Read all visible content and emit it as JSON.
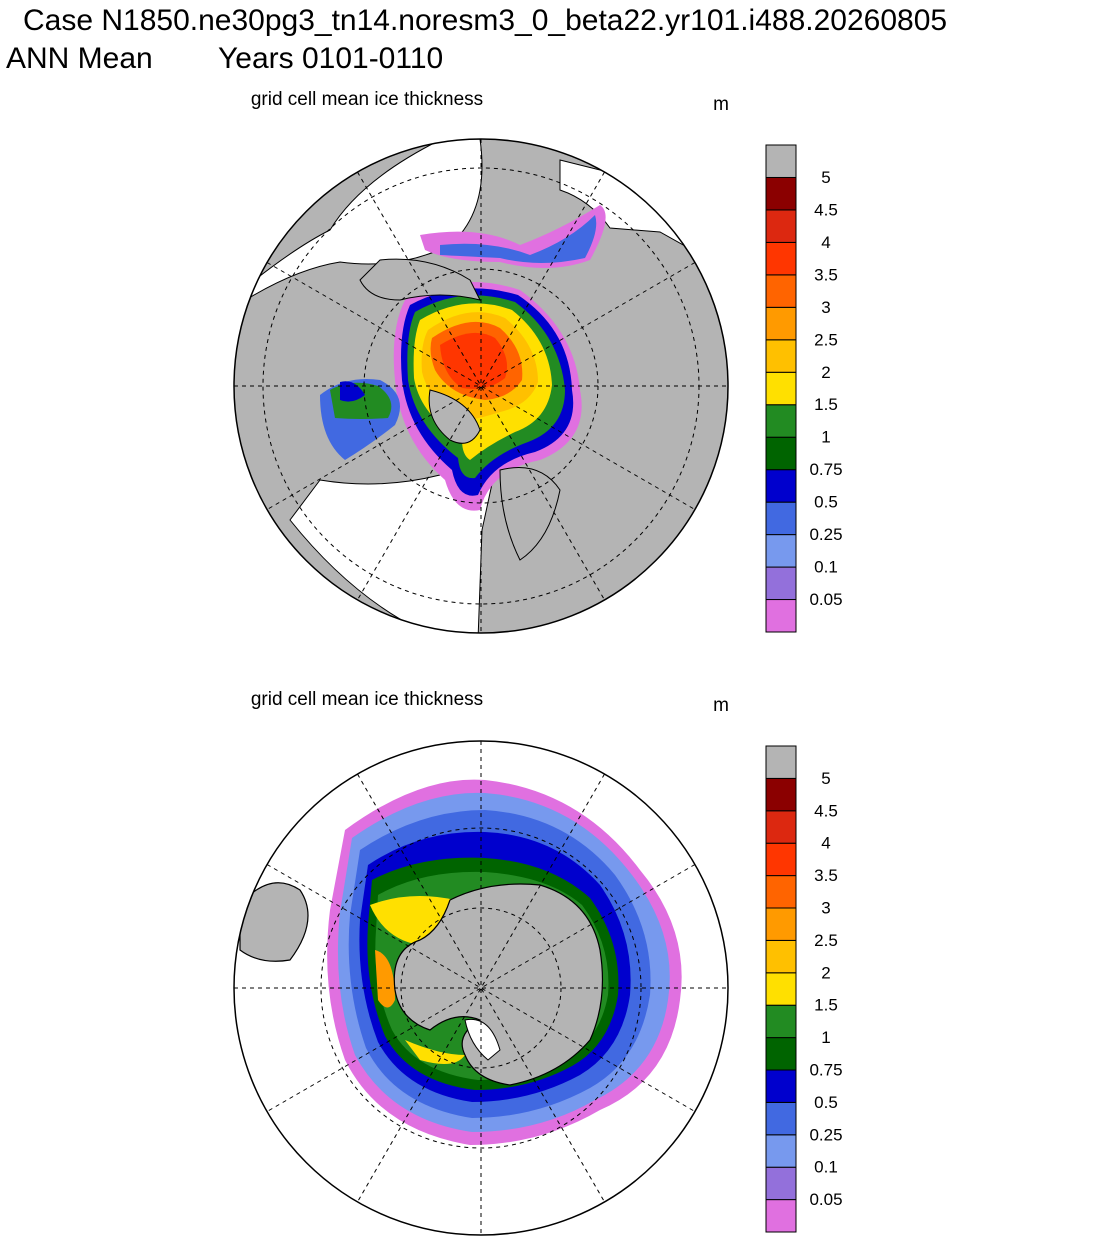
{
  "title": "Case N1850.ne30pg3_tn14.noresm3_0_beta22.yr101.i488.20260805",
  "subtitle": {
    "season": "ANN Mean",
    "years": "Years 0101-0110"
  },
  "panels": [
    {
      "title": "grid cell mean ice thickness",
      "units": "m",
      "colorbar": {
        "levels": [
          0.05,
          0.1,
          0.25,
          0.5,
          0.75,
          1,
          1.5,
          2,
          2.5,
          3,
          3.5,
          4,
          4.5,
          5
        ],
        "colors": [
          "#e070e0",
          "#9370db",
          "#7799ee",
          "#4169e1",
          "#0000cd",
          "#006400",
          "#228b22",
          "#ffe000",
          "#ffc000",
          "#ff9a00",
          "#ff6400",
          "#ff3600",
          "#dc2810",
          "#8b0000",
          "#b4b4b4"
        ]
      }
    },
    {
      "title": "grid cell mean ice thickness",
      "units": "m",
      "colorbar": {
        "levels": [
          0.05,
          0.1,
          0.25,
          0.5,
          0.75,
          1,
          1.5,
          2,
          2.5,
          3,
          3.5,
          4,
          4.5,
          5
        ],
        "colors": [
          "#e070e0",
          "#9370db",
          "#7799ee",
          "#4169e1",
          "#0000cd",
          "#006400",
          "#228b22",
          "#ffe000",
          "#ffc000",
          "#ff9a00",
          "#ff6400",
          "#ff3600",
          "#dc2810",
          "#8b0000",
          "#b4b4b4"
        ]
      }
    }
  ]
}
